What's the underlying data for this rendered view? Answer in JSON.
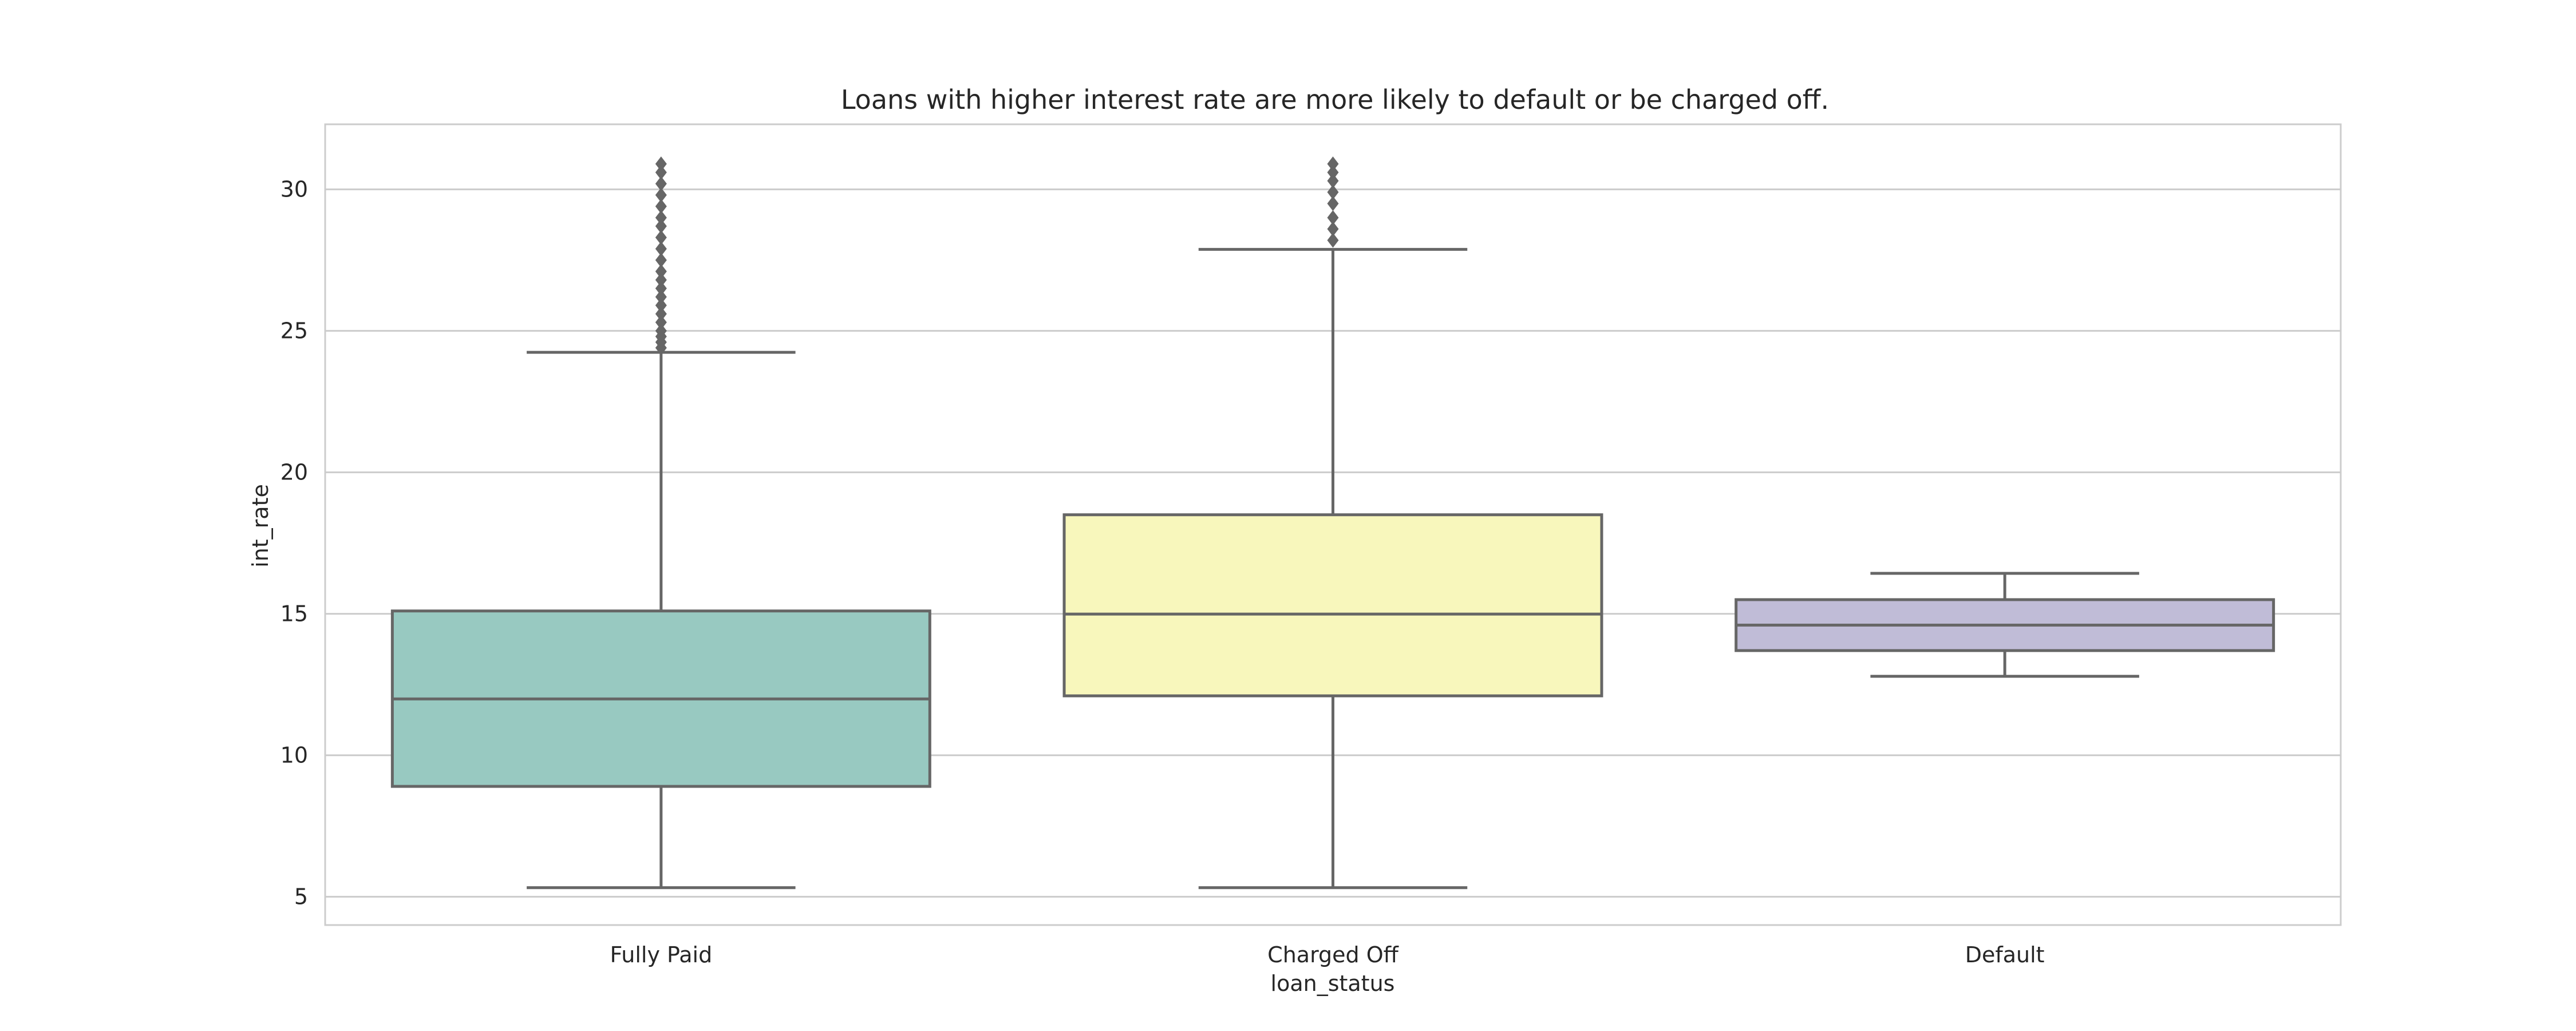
{
  "chart_data": {
    "type": "box",
    "title": "Loans with higher interest rate are more likely to default or be charged off.",
    "xlabel": "loan_status",
    "ylabel": "int_rate",
    "ylim": [
      4.0,
      32.3
    ],
    "yticks": [
      5,
      10,
      15,
      20,
      25,
      30
    ],
    "grid": "horizontal",
    "categories": [
      "Fully Paid",
      "Charged Off",
      "Default"
    ],
    "series": [
      {
        "category": "Fully Paid",
        "color": "#98c9c1",
        "whisker_low": 5.32,
        "q1": 8.9,
        "median": 11.99,
        "q3": 15.1,
        "whisker_high": 24.24,
        "outliers": [
          24.4,
          24.6,
          24.8,
          25.0,
          25.3,
          25.6,
          25.9,
          26.2,
          26.5,
          26.8,
          27.1,
          27.5,
          27.9,
          28.3,
          28.7,
          29.0,
          29.4,
          29.8,
          30.2,
          30.6,
          30.9
        ]
      },
      {
        "category": "Charged Off",
        "color": "#f8f7bc",
        "whisker_low": 5.32,
        "q1": 12.1,
        "median": 14.99,
        "q3": 18.5,
        "whisker_high": 27.88,
        "outliers": [
          28.2,
          28.6,
          29.0,
          29.5,
          29.9,
          30.3,
          30.6,
          30.9
        ]
      },
      {
        "category": "Default",
        "color": "#c0bcd7",
        "whisker_low": 12.79,
        "q1": 13.7,
        "median": 14.6,
        "q3": 15.5,
        "whisker_high": 16.43,
        "outliers": []
      }
    ]
  }
}
